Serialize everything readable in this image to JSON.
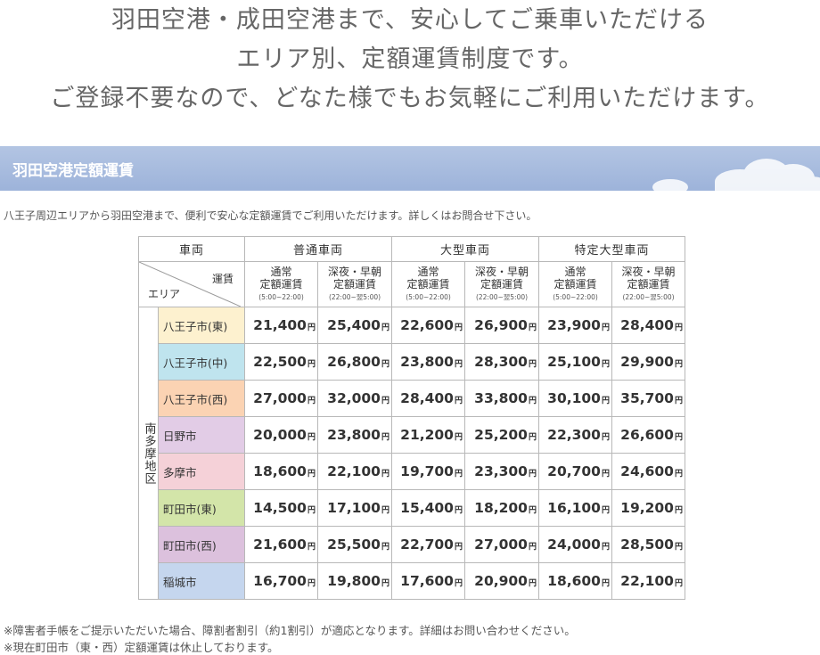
{
  "headline": {
    "line1": "羽田空港・成田空港まで、安心してご乗車いただける",
    "line2": "エリア別、定額運賃制度です。",
    "line3": "ご登録不要なので、どなた様でもお気軽にご利用いただけます。"
  },
  "section": {
    "title": "羽田空港定額運賃",
    "intro": "八王子周辺エリアから羽田空港まで、便利で安心な定額運賃でご利用いただけます。詳しくはお問合せ下さい。"
  },
  "table": {
    "vehicle_header": "車両",
    "fare_label": "運賃",
    "area_label": "エリア",
    "vehicle_groups": [
      "普通車両",
      "大型車両",
      "特定大型車両"
    ],
    "fare_types": [
      {
        "line1": "通常",
        "line2": "定額運賃",
        "time": "(5:00~22:00)"
      },
      {
        "line1": "深夜・早朝",
        "line2": "定額運賃",
        "time": "(22:00~翌5:00)"
      }
    ],
    "region_label": "南多摩地区",
    "yen": "円",
    "rows": [
      {
        "area": "八王子市(東)",
        "color": "#fdf1cf",
        "prices": [
          "21,400",
          "25,400",
          "22,600",
          "26,900",
          "23,900",
          "28,400"
        ]
      },
      {
        "area": "八王子市(中)",
        "color": "#bfe4ee",
        "prices": [
          "22,500",
          "26,800",
          "23,800",
          "28,300",
          "25,100",
          "29,900"
        ]
      },
      {
        "area": "八王子市(西)",
        "color": "#fbd3b3",
        "prices": [
          "27,000",
          "32,000",
          "28,400",
          "33,800",
          "30,100",
          "35,700"
        ]
      },
      {
        "area": "日野市",
        "color": "#e2cce6",
        "prices": [
          "20,000",
          "23,800",
          "21,200",
          "25,200",
          "22,300",
          "26,600"
        ]
      },
      {
        "area": "多摩市",
        "color": "#f5d1d8",
        "prices": [
          "18,600",
          "22,100",
          "19,700",
          "23,300",
          "20,700",
          "24,600"
        ]
      },
      {
        "area": "町田市(東)",
        "color": "#d3e5a9",
        "prices": [
          "14,500",
          "17,100",
          "15,400",
          "18,200",
          "16,100",
          "19,200"
        ]
      },
      {
        "area": "町田市(西)",
        "color": "#dcc1dd",
        "prices": [
          "21,600",
          "25,500",
          "22,700",
          "27,000",
          "24,000",
          "28,500"
        ]
      },
      {
        "area": "稲城市",
        "color": "#c5d6ee",
        "prices": [
          "16,700",
          "19,800",
          "17,600",
          "20,900",
          "18,600",
          "22,100"
        ]
      }
    ]
  },
  "notes": [
    "※障害者手帳をご提示いただいた場合、障割者割引（約1割引）が適応となります。詳細はお問い合わせください。",
    "※現在町田市（東・西）定額運賃は休止しております。"
  ],
  "colors": {
    "banner": "#a9bde0",
    "text": "#666666"
  }
}
